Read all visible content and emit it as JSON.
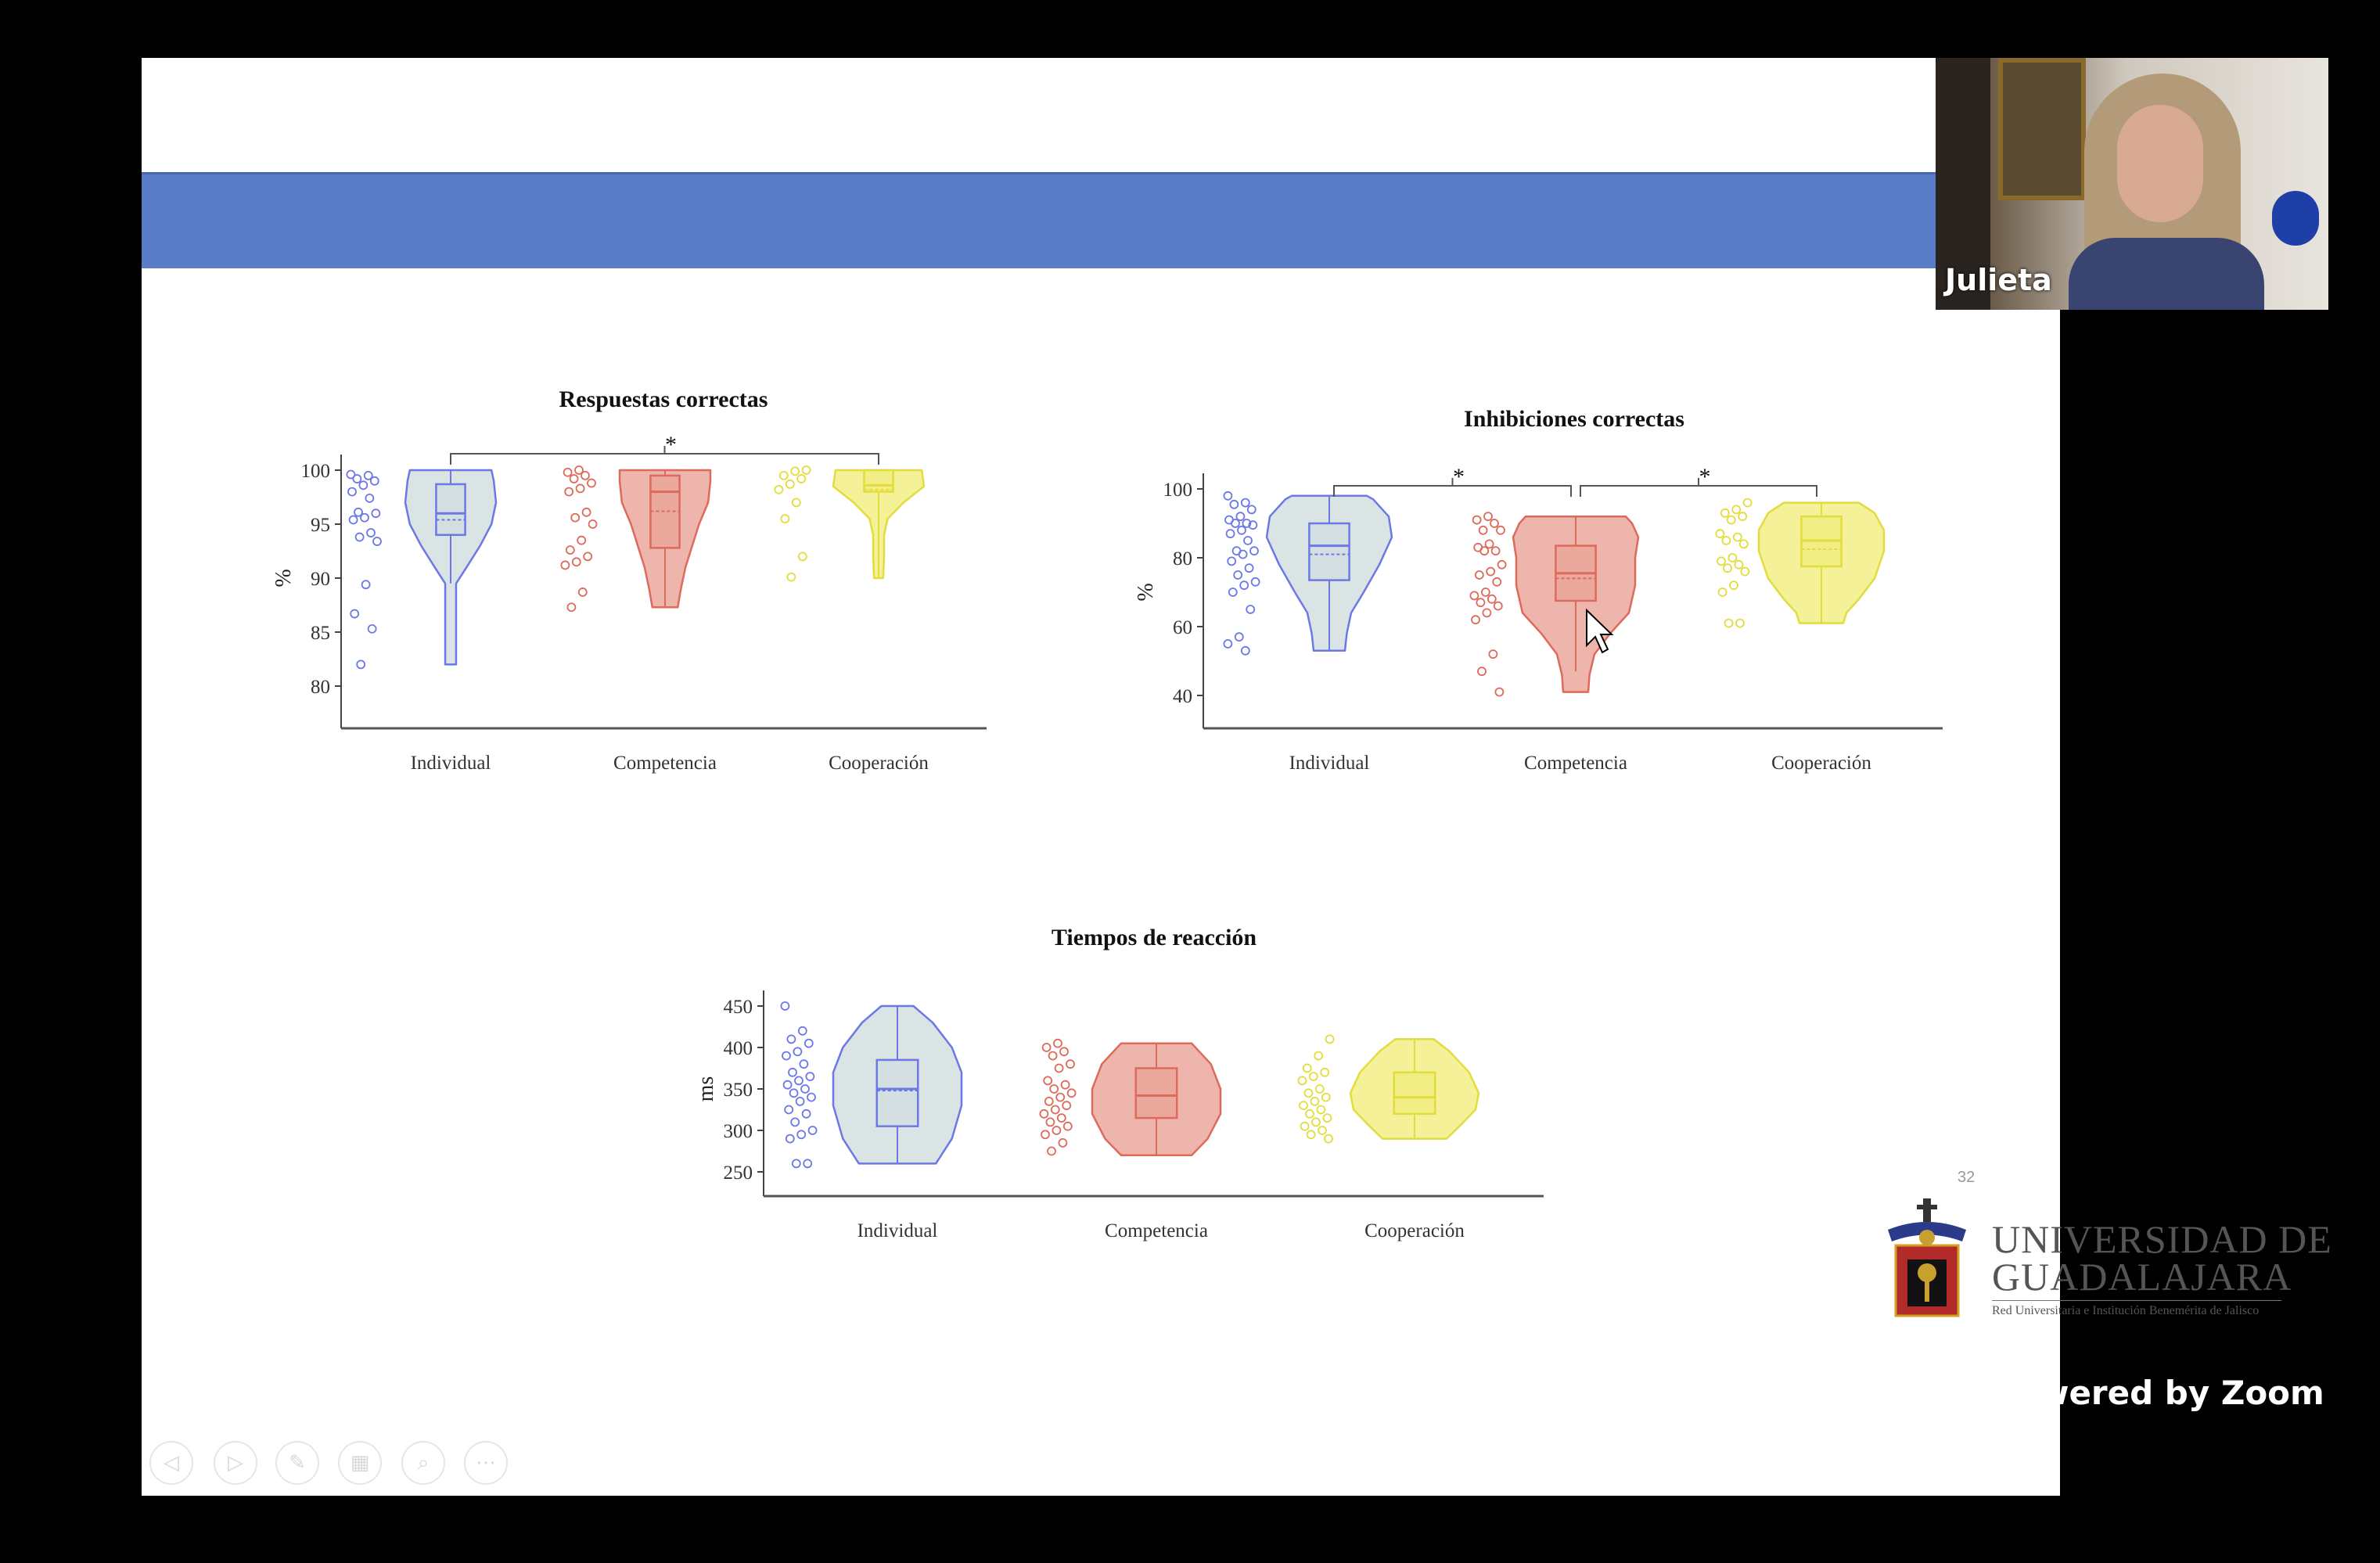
{
  "webcam": {
    "participant_name": "Julieta"
  },
  "slide": {
    "page_number": "32",
    "logo": {
      "line1": "UNIVERSIDAD DE",
      "line2": "GUADALAJARA",
      "tagline": "Red Universitaria e Institución Benemérita de Jalisco"
    }
  },
  "zoom_watermark": "Powered by Zoom",
  "controls": [
    {
      "icon": "previous-icon",
      "glyph": "◁"
    },
    {
      "icon": "next-icon",
      "glyph": "▷"
    },
    {
      "icon": "pen-icon",
      "glyph": "✎"
    },
    {
      "icon": "grid-icon",
      "glyph": "▦"
    },
    {
      "icon": "magnifier-icon",
      "glyph": "⌕"
    },
    {
      "icon": "more-icon",
      "glyph": "⋯"
    }
  ],
  "colors": {
    "Individual": {
      "stroke": "#6b78e6",
      "fill": "#d3dfe0"
    },
    "Competencia": {
      "stroke": "#dd6a5a",
      "fill": "#eba89d"
    },
    "Cooperación": {
      "stroke": "#e2dc3c",
      "fill": "#f2ee86"
    }
  },
  "chart_data": [
    {
      "type": "violin",
      "title": "Respuestas correctas",
      "ylabel": "%",
      "yticks": [
        80,
        85,
        90,
        95,
        100
      ],
      "ylim": [
        76,
        100
      ],
      "categories": [
        "Individual",
        "Competencia",
        "Cooperación"
      ],
      "significance": [
        {
          "from": "Individual",
          "to": "Cooperación",
          "label": "*"
        }
      ],
      "groups": [
        {
          "name": "Individual",
          "min": 82,
          "max": 100,
          "q1": 94,
          "median": 96,
          "q3": 98.7,
          "mean": 95.4,
          "whisker_low": 89.5,
          "whisker_high": 100,
          "density": [
            [
              82,
              0.12
            ],
            [
              86,
              0.12
            ],
            [
              89.5,
              0.12
            ],
            [
              91,
              0.35
            ],
            [
              93,
              0.65
            ],
            [
              95,
              0.9
            ],
            [
              97,
              1
            ],
            [
              99,
              0.95
            ],
            [
              100,
              0.9
            ]
          ],
          "points": [
            99.6,
            99.5,
            99.2,
            99,
            98.6,
            98,
            97.4,
            96.1,
            96,
            95.6,
            95.4,
            94.2,
            93.8,
            93.4,
            89.4,
            86.7,
            85.3,
            82
          ]
        },
        {
          "name": "Competencia",
          "min": 87.3,
          "max": 100,
          "q1": 92.8,
          "median": 98,
          "q3": 99.5,
          "mean": 96.2,
          "whisker_low": 87.3,
          "whisker_high": 100,
          "density": [
            [
              87.3,
              0.28
            ],
            [
              89,
              0.35
            ],
            [
              91,
              0.45
            ],
            [
              93,
              0.6
            ],
            [
              95,
              0.75
            ],
            [
              97,
              0.95
            ],
            [
              99,
              1
            ],
            [
              100,
              1
            ]
          ],
          "points": [
            100,
            99.8,
            99.5,
            99.2,
            98.8,
            98.3,
            98,
            96.1,
            95.6,
            95,
            93.5,
            92.6,
            92,
            91.5,
            91.2,
            88.7,
            87.3
          ]
        },
        {
          "name": "Cooperación",
          "min": 90,
          "max": 100,
          "q1": 98,
          "median": 98.6,
          "q3": 100,
          "mean": 98.2,
          "whisker_low": 90,
          "whisker_high": 100,
          "density": [
            [
              90,
              0.1
            ],
            [
              92,
              0.12
            ],
            [
              94,
              0.12
            ],
            [
              95.5,
              0.2
            ],
            [
              97,
              0.55
            ],
            [
              98.5,
              1
            ],
            [
              100,
              0.95
            ]
          ],
          "points": [
            100,
            99.9,
            99.5,
            99.2,
            98.7,
            98.2,
            97,
            95.5,
            92,
            90.1
          ]
        }
      ]
    },
    {
      "type": "violin",
      "title": "Inhibiciones correctas",
      "ylabel": "%",
      "yticks": [
        40,
        60,
        80,
        100
      ],
      "ylim": [
        31,
        100
      ],
      "categories": [
        "Individual",
        "Competencia",
        "Cooperación"
      ],
      "significance": [
        {
          "from": "Individual",
          "to": "Competencia",
          "label": "*"
        },
        {
          "from": "Competencia",
          "to": "Cooperación",
          "label": "*"
        }
      ],
      "groups": [
        {
          "name": "Individual",
          "min": 53,
          "max": 98,
          "q1": 73.5,
          "median": 83.5,
          "q3": 90,
          "mean": 81,
          "whisker_low": 53,
          "whisker_high": 98,
          "density": [
            [
              53,
              0.25
            ],
            [
              58,
              0.28
            ],
            [
              64,
              0.35
            ],
            [
              70,
              0.55
            ],
            [
              78,
              0.8
            ],
            [
              86,
              1
            ],
            [
              92,
              0.95
            ],
            [
              97,
              0.7
            ],
            [
              98,
              0.6
            ]
          ],
          "points": [
            98,
            96,
            95.5,
            94,
            92,
            91,
            90,
            90,
            89.5,
            88,
            87,
            85,
            82,
            82,
            81,
            79,
            77,
            75,
            73,
            72,
            70,
            65,
            57,
            55,
            53
          ]
        },
        {
          "name": "Competencia",
          "min": 41,
          "max": 92,
          "q1": 67.5,
          "median": 75.5,
          "q3": 83.5,
          "mean": 74,
          "whisker_low": 47,
          "whisker_high": 92,
          "density": [
            [
              41,
              0.2
            ],
            [
              46,
              0.22
            ],
            [
              52,
              0.3
            ],
            [
              58,
              0.55
            ],
            [
              64,
              0.85
            ],
            [
              72,
              0.95
            ],
            [
              80,
              0.95
            ],
            [
              86,
              1
            ],
            [
              90,
              0.9
            ],
            [
              92,
              0.8
            ]
          ],
          "points": [
            92,
            91,
            90,
            88,
            88,
            84,
            83,
            82,
            82,
            78,
            76,
            75,
            73,
            70,
            69,
            68,
            67,
            66,
            64,
            62,
            52,
            47,
            41
          ]
        },
        {
          "name": "Cooperación",
          "min": 61,
          "max": 96,
          "q1": 77.5,
          "median": 85,
          "q3": 92,
          "mean": 82.5,
          "whisker_low": 61,
          "whisker_high": 96,
          "density": [
            [
              61,
              0.35
            ],
            [
              64,
              0.4
            ],
            [
              68,
              0.6
            ],
            [
              74,
              0.85
            ],
            [
              82,
              1
            ],
            [
              88,
              1
            ],
            [
              93,
              0.85
            ],
            [
              96,
              0.6
            ]
          ],
          "points": [
            96,
            94,
            93,
            92,
            91,
            87,
            86,
            85,
            84,
            80,
            79,
            78,
            77,
            76,
            72,
            70,
            61,
            61
          ]
        }
      ]
    },
    {
      "type": "violin",
      "title": "Tiempos de reacción",
      "ylabel": "ms",
      "yticks": [
        250,
        300,
        350,
        400,
        450
      ],
      "ylim": [
        220,
        455
      ],
      "categories": [
        "Individual",
        "Competencia",
        "Cooperación"
      ],
      "significance": [],
      "groups": [
        {
          "name": "Individual",
          "min": 260,
          "max": 450,
          "q1": 305,
          "median": 350,
          "q3": 385,
          "mean": 348,
          "whisker_low": 260,
          "whisker_high": 450,
          "density": [
            [
              260,
              0.6
            ],
            [
              290,
              0.85
            ],
            [
              330,
              1
            ],
            [
              370,
              1
            ],
            [
              400,
              0.85
            ],
            [
              430,
              0.55
            ],
            [
              450,
              0.25
            ]
          ],
          "points": [
            450,
            420,
            410,
            405,
            395,
            390,
            380,
            370,
            365,
            360,
            355,
            350,
            345,
            340,
            335,
            325,
            320,
            310,
            300,
            295,
            290,
            260,
            260
          ]
        },
        {
          "name": "Competencia",
          "min": 270,
          "max": 405,
          "q1": 315,
          "median": 342,
          "q3": 375,
          "mean": 342,
          "whisker_low": 270,
          "whisker_high": 405,
          "density": [
            [
              270,
              0.55
            ],
            [
              290,
              0.8
            ],
            [
              320,
              1
            ],
            [
              350,
              1
            ],
            [
              380,
              0.85
            ],
            [
              405,
              0.55
            ]
          ],
          "points": [
            405,
            400,
            395,
            390,
            380,
            375,
            360,
            355,
            350,
            345,
            340,
            335,
            330,
            325,
            320,
            315,
            310,
            305,
            300,
            295,
            285,
            275
          ]
        },
        {
          "name": "Cooperación",
          "min": 290,
          "max": 410,
          "q1": 320,
          "median": 340,
          "q3": 370,
          "mean": 340,
          "whisker_low": 290,
          "whisker_high": 410,
          "density": [
            [
              290,
              0.5
            ],
            [
              305,
              0.7
            ],
            [
              325,
              0.95
            ],
            [
              345,
              1
            ],
            [
              370,
              0.85
            ],
            [
              395,
              0.55
            ],
            [
              410,
              0.3
            ]
          ],
          "points": [
            410,
            390,
            375,
            370,
            365,
            360,
            350,
            345,
            340,
            335,
            330,
            325,
            320,
            315,
            310,
            305,
            300,
            295,
            290
          ]
        }
      ]
    }
  ]
}
